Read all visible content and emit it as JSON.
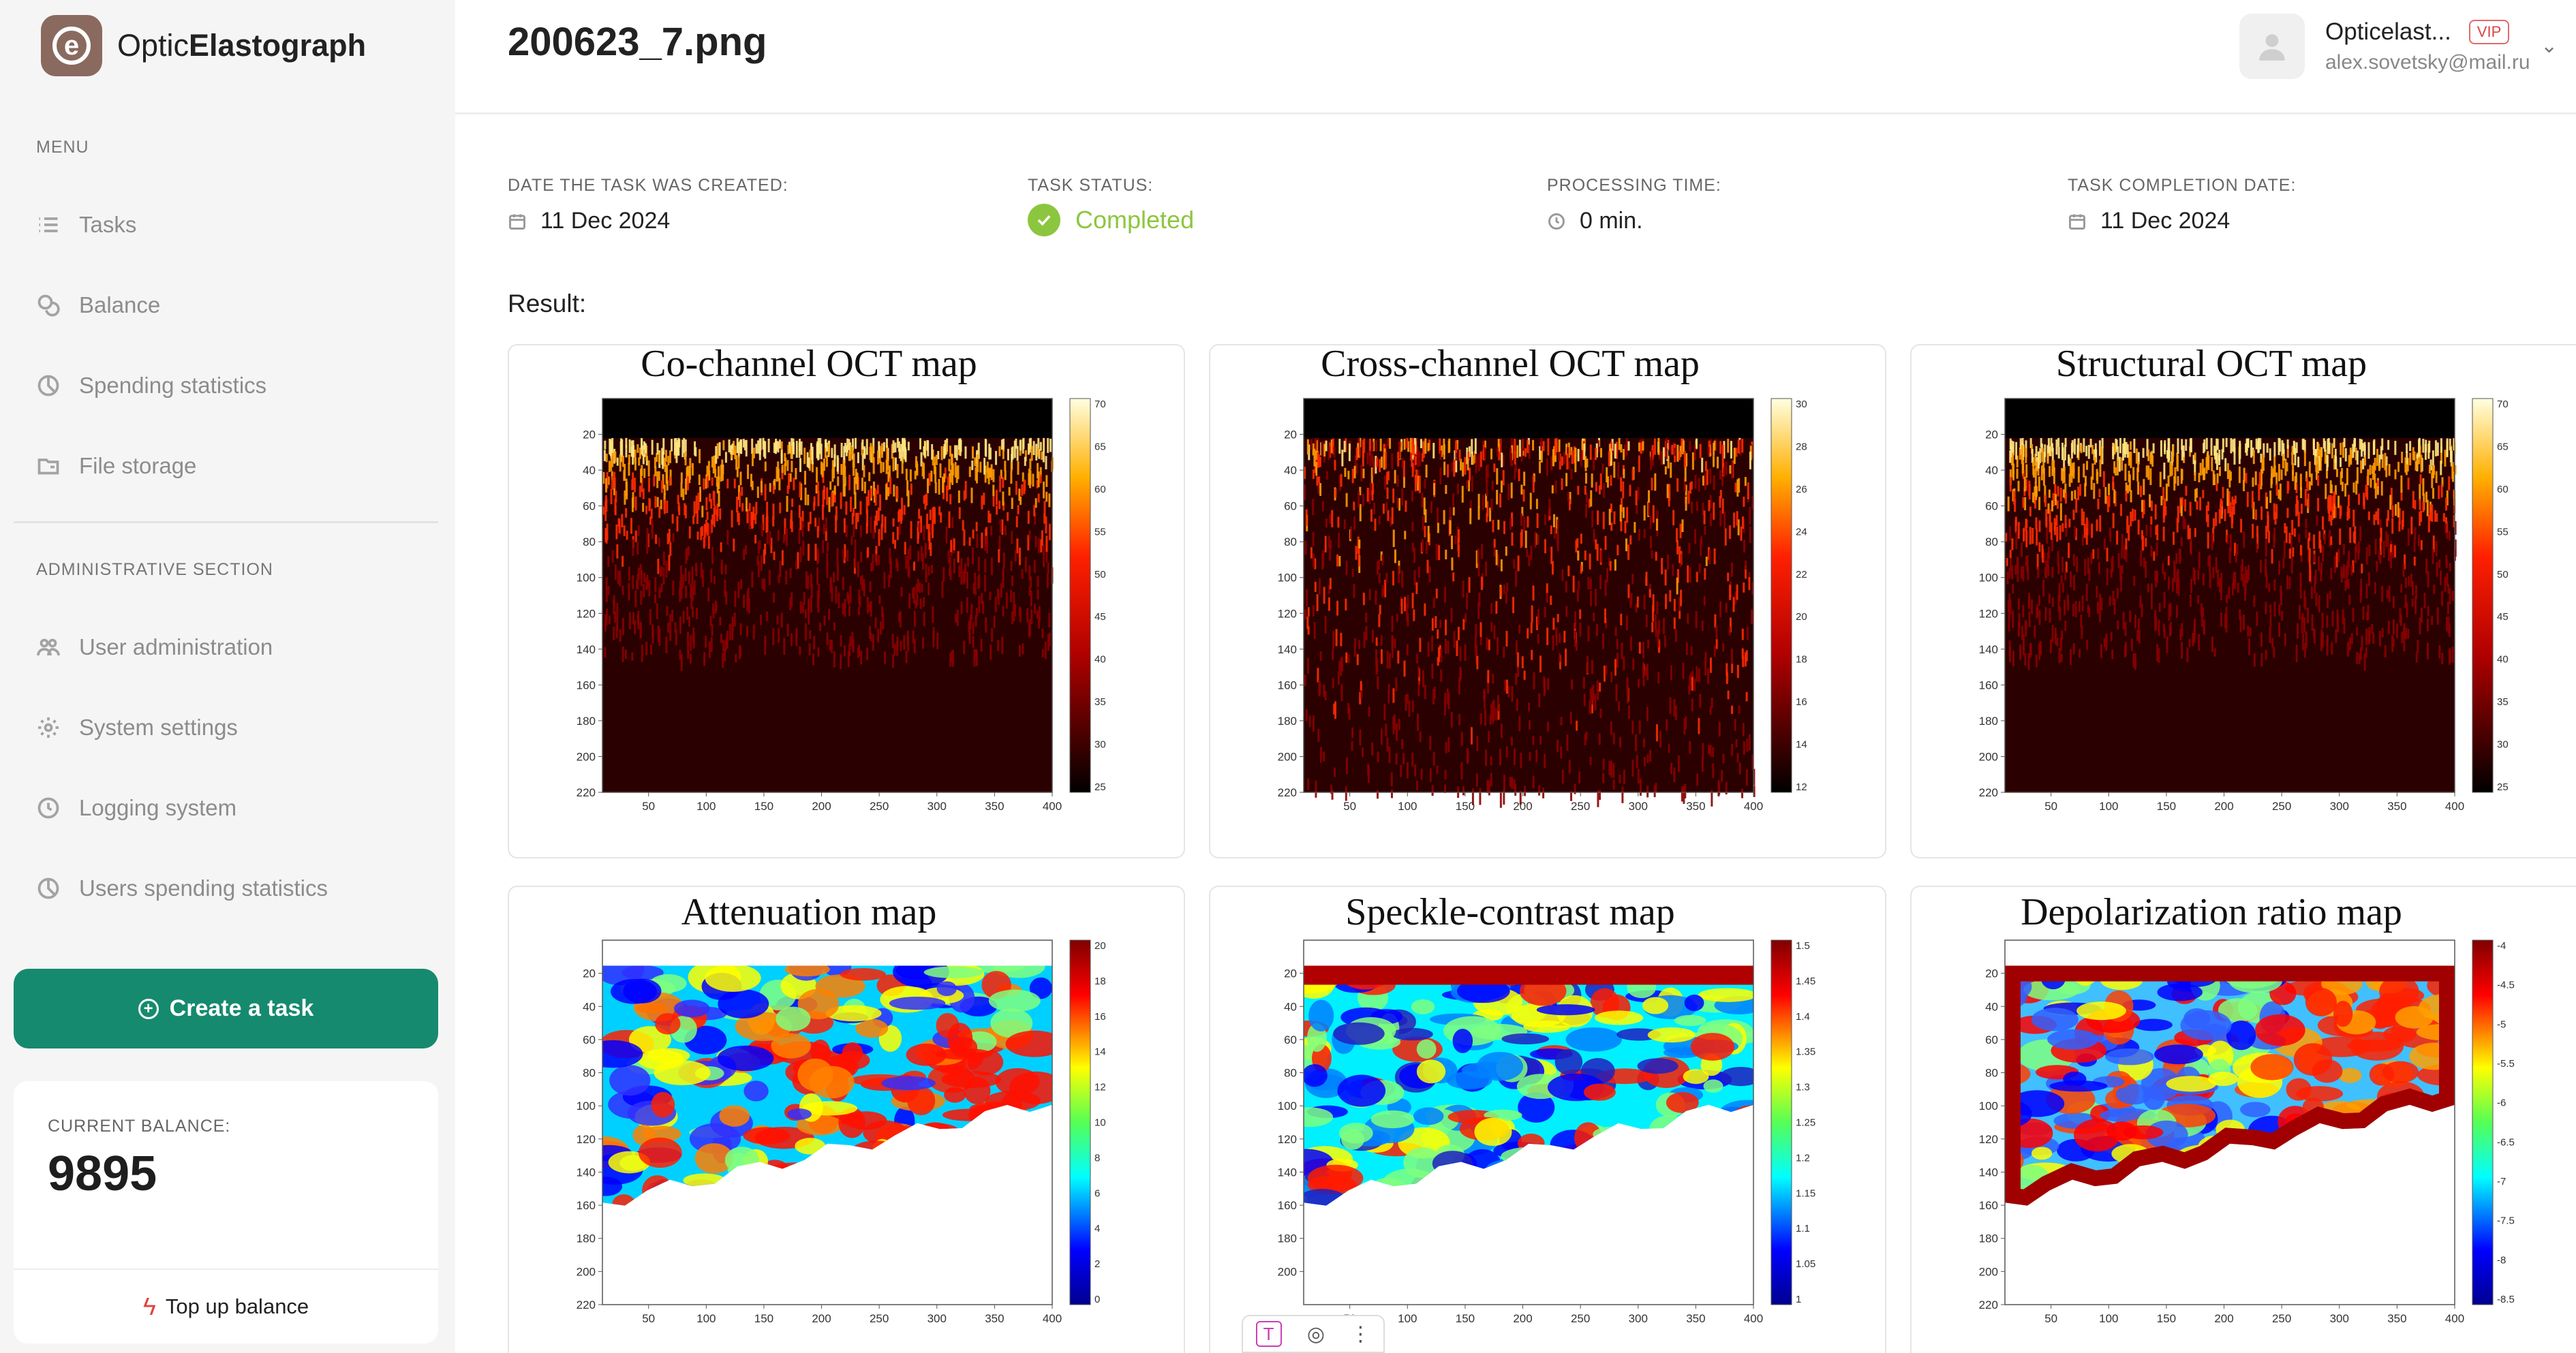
{
  "brand": {
    "name_light": "Optic",
    "name_bold": "Elastograph",
    "logo_letter": "e"
  },
  "sidebar": {
    "menu_label": "MENU",
    "menu_items": [
      {
        "label": "Tasks",
        "icon": "list-icon"
      },
      {
        "label": "Balance",
        "icon": "coins-icon"
      },
      {
        "label": "Spending statistics",
        "icon": "chart-circle-icon"
      },
      {
        "label": "File storage",
        "icon": "folder-icon"
      }
    ],
    "admin_label": "ADMINISTRATIVE SECTION",
    "admin_items": [
      {
        "label": "User administration",
        "icon": "users-icon"
      },
      {
        "label": "System settings",
        "icon": "gear-icon"
      },
      {
        "label": "Logging system",
        "icon": "clock-icon"
      },
      {
        "label": "Users spending statistics",
        "icon": "chart-circle-icon"
      }
    ],
    "create_task": "Create a task",
    "balance": {
      "label": "CURRENT BALANCE:",
      "value": "9895",
      "topup": "Top up balance"
    }
  },
  "header": {
    "file_title": "200623_7.png",
    "user_name": "Opticelast...",
    "vip": "VIP",
    "email": "alex.sovetsky@mail.ru"
  },
  "meta": {
    "created": {
      "label": "DATE THE TASK WAS CREATED:",
      "value": "11 Dec 2024"
    },
    "status": {
      "label": "TASK STATUS:",
      "value": "Completed"
    },
    "processing": {
      "label": "PROCESSING TIME:",
      "value": "0 min."
    },
    "completed": {
      "label": "TASK COMPLETION DATE:",
      "value": "11 Dec 2024"
    }
  },
  "result_label": "Result:",
  "colors": {
    "accent": "#168a6e",
    "status": "#8cc63f",
    "vip": "#d94545"
  },
  "chart_data": [
    {
      "type": "heatmap",
      "title": "Co-channel OCT map",
      "colormap": "hot",
      "xticks": [
        50,
        100,
        150,
        200,
        250,
        300,
        350,
        400
      ],
      "yticks": [
        20,
        40,
        60,
        80,
        100,
        120,
        140,
        160,
        180,
        200,
        220
      ],
      "xlim": [
        10,
        400
      ],
      "ylim": [
        220,
        0
      ],
      "colorbar": [
        70,
        65,
        60,
        55,
        50,
        45,
        40,
        35,
        30,
        25
      ]
    },
    {
      "type": "heatmap",
      "title": "Cross-channel OCT map",
      "colormap": "hot",
      "xticks": [
        50,
        100,
        150,
        200,
        250,
        300,
        350,
        400
      ],
      "yticks": [
        20,
        40,
        60,
        80,
        100,
        120,
        140,
        160,
        180,
        200,
        220
      ],
      "xlim": [
        10,
        400
      ],
      "ylim": [
        220,
        0
      ],
      "colorbar": [
        30,
        28,
        26,
        24,
        22,
        20,
        18,
        16,
        14,
        12
      ]
    },
    {
      "type": "heatmap",
      "title": "Structural OCT map",
      "colormap": "hot",
      "xticks": [
        50,
        100,
        150,
        200,
        250,
        300,
        350,
        400
      ],
      "yticks": [
        20,
        40,
        60,
        80,
        100,
        120,
        140,
        160,
        180,
        200,
        220
      ],
      "xlim": [
        10,
        400
      ],
      "ylim": [
        220,
        0
      ],
      "colorbar": [
        70,
        65,
        60,
        55,
        50,
        45,
        40,
        35,
        30,
        25
      ]
    },
    {
      "type": "heatmap",
      "title": "Attenuation map",
      "colormap": "jet",
      "xticks": [
        50,
        100,
        150,
        200,
        250,
        300,
        350,
        400
      ],
      "yticks": [
        20,
        40,
        60,
        80,
        100,
        120,
        140,
        160,
        180,
        200,
        220
      ],
      "xlim": [
        10,
        400
      ],
      "ylim": [
        220,
        0
      ],
      "colorbar": [
        20,
        18,
        16,
        14,
        12,
        10,
        8,
        6,
        4,
        2,
        0
      ]
    },
    {
      "type": "heatmap",
      "title": "Speckle-contrast map",
      "colormap": "jet",
      "xticks": [
        50,
        100,
        150,
        200,
        250,
        300,
        350,
        400
      ],
      "yticks": [
        20,
        40,
        60,
        80,
        100,
        120,
        140,
        160,
        180,
        200
      ],
      "xlim": [
        10,
        400
      ],
      "ylim": [
        220,
        0
      ],
      "colorbar": [
        1.5,
        1.45,
        1.4,
        1.35,
        1.3,
        1.25,
        1.2,
        1.15,
        1.1,
        1.05,
        1
      ]
    },
    {
      "type": "heatmap",
      "title": "Depolarization ratio map",
      "colormap": "jet",
      "xticks": [
        50,
        100,
        150,
        200,
        250,
        300,
        350,
        400
      ],
      "yticks": [
        20,
        40,
        60,
        80,
        100,
        120,
        140,
        160,
        180,
        200,
        220
      ],
      "xlim": [
        10,
        400
      ],
      "ylim": [
        220,
        0
      ],
      "colorbar": [
        -4,
        -4.5,
        -5,
        -5.5,
        -6,
        -6.5,
        -7,
        -7.5,
        -8,
        -8.5
      ]
    }
  ]
}
